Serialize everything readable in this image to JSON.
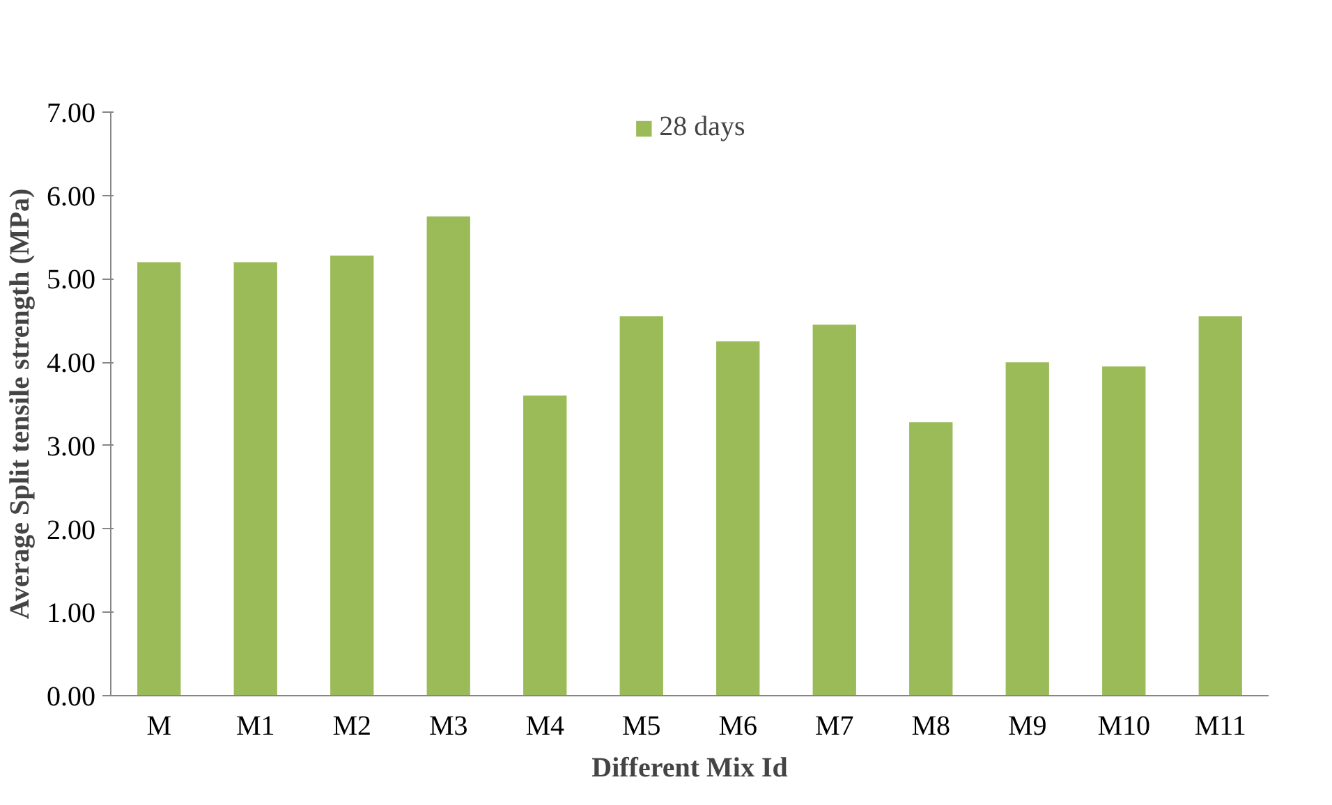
{
  "chart_data": {
    "type": "bar",
    "xlabel": "Different Mix Id",
    "ylabel": "Average Split tensile strength (MPa)",
    "categories": [
      "M",
      "M1",
      "M2",
      "M3",
      "M4",
      "M5",
      "M6",
      "M7",
      "M8",
      "M9",
      "M10",
      "M11"
    ],
    "series": [
      {
        "name": "28 days",
        "color": "#9bbb59",
        "values": [
          5.2,
          5.2,
          5.28,
          5.75,
          3.6,
          4.55,
          4.25,
          4.45,
          3.28,
          4.0,
          3.95,
          4.55
        ]
      }
    ],
    "ylim": [
      0,
      7
    ],
    "yticks": [
      {
        "value": 0,
        "label": "0.00"
      },
      {
        "value": 1,
        "label": "1.00"
      },
      {
        "value": 2,
        "label": "2.00"
      },
      {
        "value": 3,
        "label": "3.00"
      },
      {
        "value": 4,
        "label": "4.00"
      },
      {
        "value": 5,
        "label": "5.00"
      },
      {
        "value": 6,
        "label": "6.00"
      },
      {
        "value": 7,
        "label": "7.00"
      }
    ],
    "grid": false,
    "legend": "top"
  }
}
